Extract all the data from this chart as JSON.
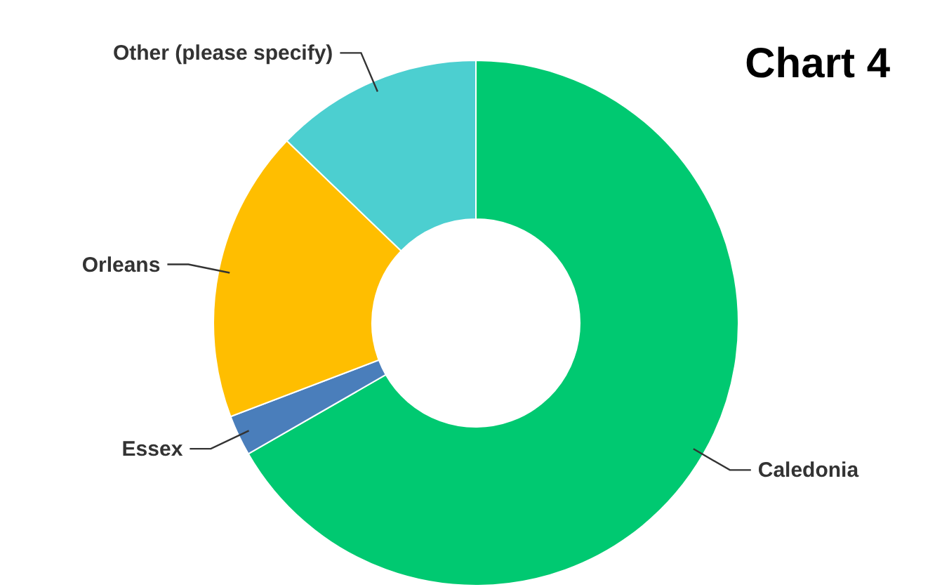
{
  "chart_data": {
    "type": "donut",
    "title": "Chart 4",
    "categories": [
      "Caledonia",
      "Essex",
      "Orleans",
      "Other (please specify)"
    ],
    "values": [
      66.7,
      2.5,
      18,
      12.8
    ],
    "colors": [
      "#00c971",
      "#4a7ebb",
      "#ffbe00",
      "#4ccfd0"
    ]
  }
}
